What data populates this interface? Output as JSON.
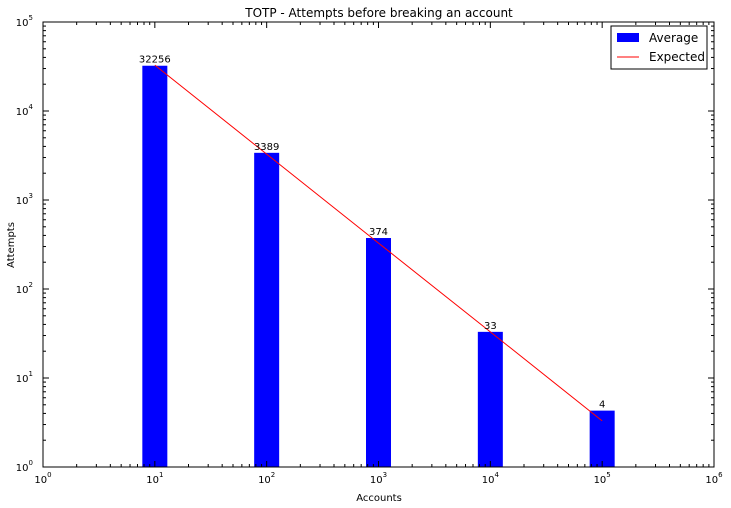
{
  "chart_data": {
    "type": "bar",
    "title": "TOTP - Attempts before breaking an account",
    "xlabel": "Accounts",
    "ylabel": "Attempts",
    "xscale": "log",
    "yscale": "log",
    "xlim": [
      1,
      1000000
    ],
    "ylim": [
      1,
      100000
    ],
    "x_ticks": [
      {
        "base": "10",
        "exp": "0"
      },
      {
        "base": "10",
        "exp": "1"
      },
      {
        "base": "10",
        "exp": "2"
      },
      {
        "base": "10",
        "exp": "3"
      },
      {
        "base": "10",
        "exp": "4"
      },
      {
        "base": "10",
        "exp": "5"
      },
      {
        "base": "10",
        "exp": "6"
      }
    ],
    "y_ticks": [
      {
        "base": "10",
        "exp": "0"
      },
      {
        "base": "10",
        "exp": "1"
      },
      {
        "base": "10",
        "exp": "2"
      },
      {
        "base": "10",
        "exp": "3"
      },
      {
        "base": "10",
        "exp": "4"
      },
      {
        "base": "10",
        "exp": "5"
      }
    ],
    "series": [
      {
        "name": "Average",
        "kind": "bar",
        "color": "#0000ff",
        "x": [
          10,
          100,
          1000,
          10000,
          100000
        ],
        "values": [
          32256,
          3389,
          374,
          33,
          4.3
        ],
        "labels": [
          "32256",
          "3389",
          "374",
          "33",
          "4"
        ]
      },
      {
        "name": "Expected",
        "kind": "line",
        "color": "#ff0000",
        "x": [
          10,
          100,
          1000,
          10000,
          100000
        ],
        "values": [
          32768,
          3277,
          328,
          33,
          3.3
        ]
      }
    ],
    "legend": "top-right",
    "grid": false
  }
}
